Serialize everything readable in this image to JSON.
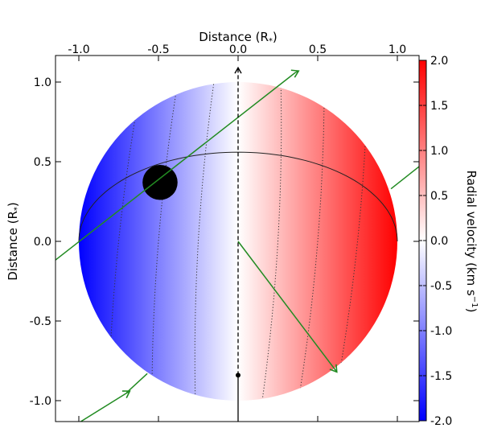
{
  "chart_data": {
    "type": "heatmap",
    "title": "",
    "x_top_label": "Distance (R",
    "x_top_label_sub": "*",
    "x_top_label_close": ")",
    "ylabel": "Distance (R",
    "ylabel_sub": "*",
    "ylabel_close": ")",
    "xlim": [
      -1.1,
      1.15
    ],
    "ylim": [
      -1.15,
      1.1
    ],
    "x_ticks": [
      -1.0,
      -0.5,
      0.0,
      0.5,
      1.0
    ],
    "x_tick_labels": [
      "-1.0",
      "-0.5",
      "0.0",
      "0.5",
      "1.0"
    ],
    "y_ticks": [
      1.0,
      0.5,
      0.0,
      -0.5,
      -1.0
    ],
    "y_tick_labels": [
      "1.0",
      "0.5",
      "0.0",
      "-0.5",
      "-1.0"
    ],
    "colorbar": {
      "label": "Radial velocity (km s",
      "label_sup": "−1",
      "label_close": ")",
      "range": [
        -2.0,
        2.0
      ],
      "ticks": [
        2.0,
        1.5,
        1.0,
        0.5,
        0.0,
        -0.5,
        -1.0,
        -1.5,
        -2.0
      ],
      "tick_labels": [
        "2.0",
        "1.5",
        "1.0",
        "0.5",
        "0.0",
        "-0.5",
        "-1.0",
        "-1.5",
        "-2.0"
      ],
      "colors": {
        "low": "#0000ff",
        "mid": "#ffffff",
        "high": "#ff0000"
      }
    },
    "star": {
      "center": [
        0,
        0
      ],
      "radius": 1.0
    },
    "planet": {
      "x": -0.49,
      "y": 0.37,
      "radius": 0.11,
      "color": "#000000"
    },
    "transit_chord": {
      "impact": 0.56,
      "b_over_a": 0.19
    },
    "velocity_contours": [
      -1.5,
      -1.0,
      -0.5,
      0.5,
      1.0,
      1.5
    ],
    "stellar_rotation_axis": {
      "top": [
        0,
        1.09
      ],
      "pole_point": [
        0,
        -0.84
      ],
      "bottom": [
        0,
        -1.15
      ]
    },
    "orbit_normal_arrow": {
      "from": [
        0,
        0
      ],
      "to": [
        0.62,
        -0.82
      ]
    },
    "orbit_line": {
      "slope": 0.78,
      "intercept": 0.73
    },
    "line_color": "#228b22"
  }
}
